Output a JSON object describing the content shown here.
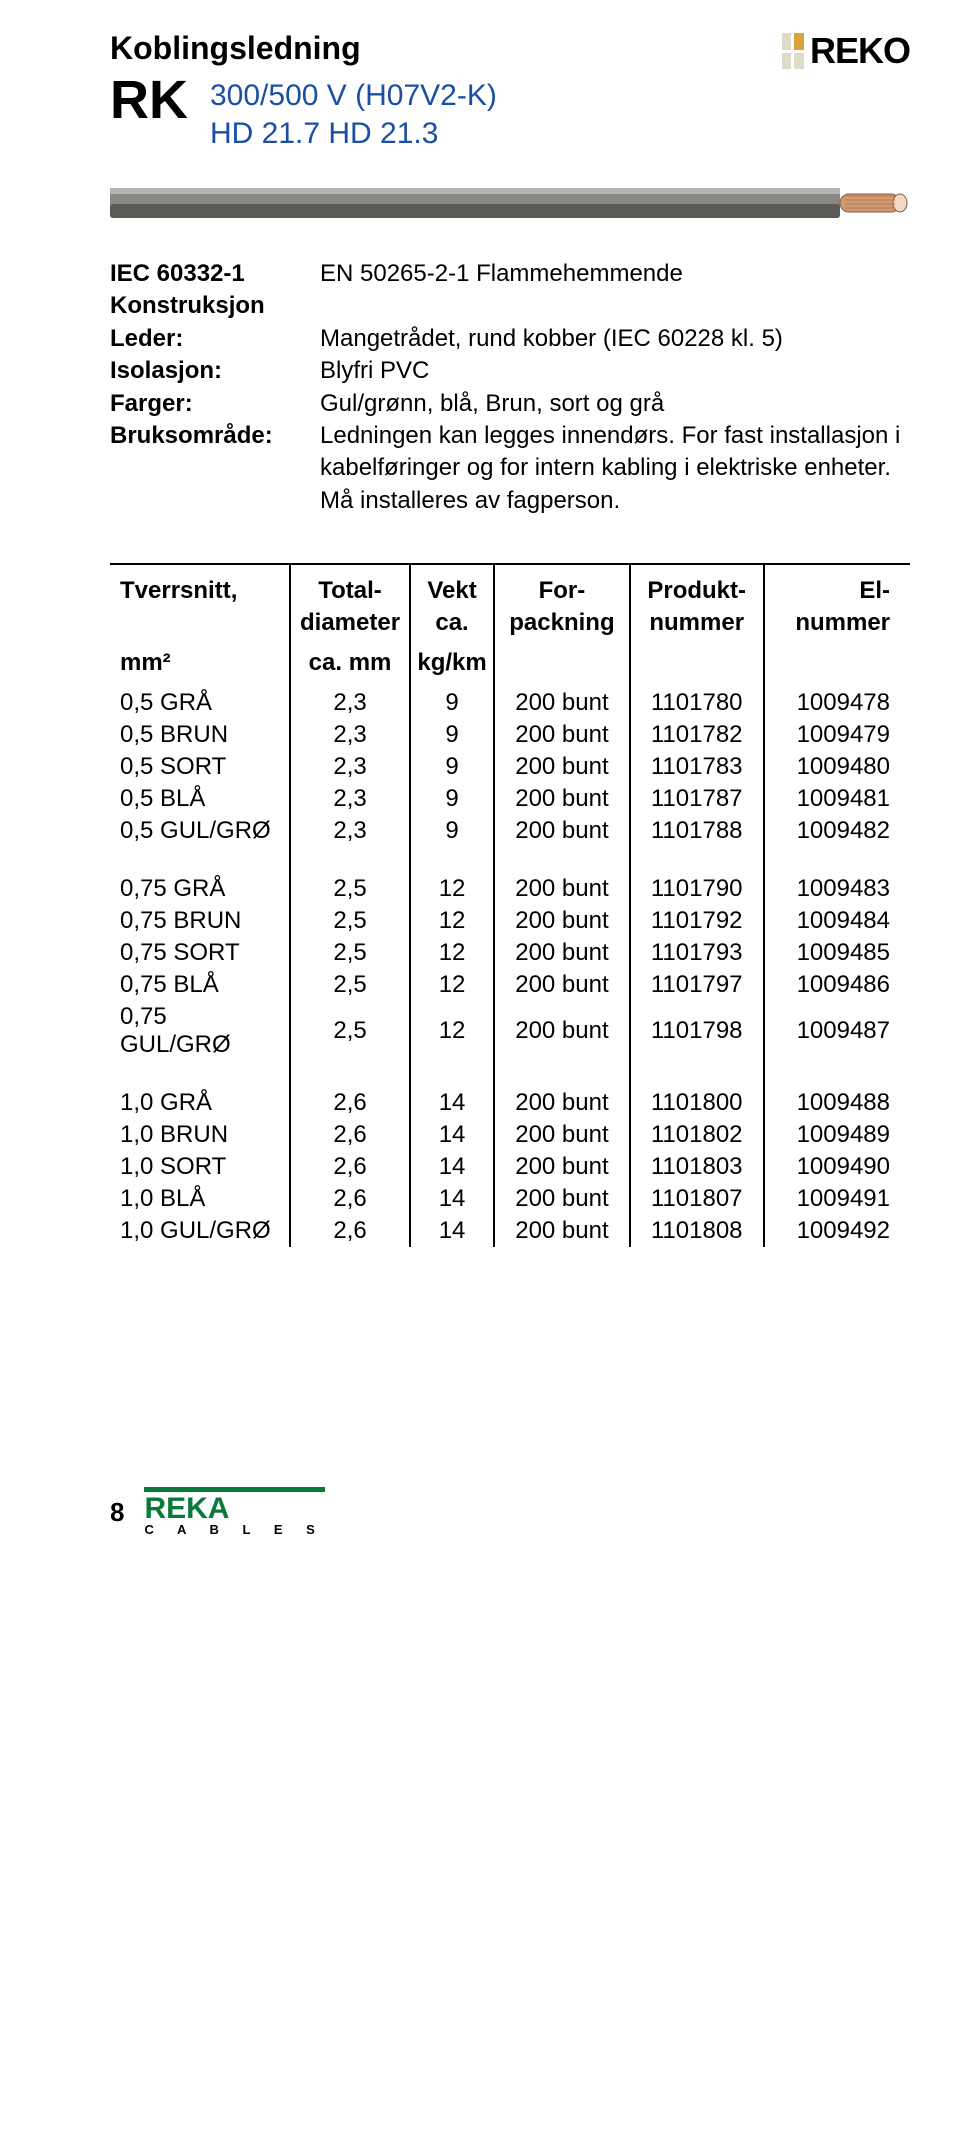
{
  "header": {
    "title": "Koblingsledning",
    "code": "RK",
    "subtitle_l1": "300/500 V (H07V2-K)",
    "subtitle_l2": "HD 21.7   HD 21.3",
    "logo_text": "REKO",
    "logo_colors": {
      "plain": "#dedbc9",
      "accent": "#d8a43b"
    }
  },
  "cable_colors": {
    "sheath": "#8a8887",
    "shadow": "#5a5956",
    "copper": "#d29a73",
    "core": "#f1d8c5"
  },
  "specs": [
    {
      "label": "IEC 60332-1",
      "value": "EN 50265-2-1     Flammehemmende"
    },
    {
      "label": "Konstruksjon",
      "value": ""
    },
    {
      "label": "Leder:",
      "value": "Mangetrådet, rund kobber (IEC 60228 kl. 5)"
    },
    {
      "label": "Isolasjon:",
      "value": "Blyfri PVC"
    },
    {
      "label": "Farger:",
      "value": "Gul/grønn, blå, Brun, sort og grå"
    },
    {
      "label": "Bruksområde:",
      "value": "Ledningen kan legges innendørs. For fast installasjon i kabelføringer og for intern kabling i elektriske enheter. Må installeres av fagperson."
    }
  ],
  "table": {
    "headers": {
      "c0a": "Tverrsnitt,",
      "c0b": "",
      "c1a": "Total-",
      "c1b": "diameter",
      "c2a": "Vekt",
      "c2b": "ca.",
      "c3a": "For-",
      "c3b": "packning",
      "c4a": "Produkt-",
      "c4b": "nummer",
      "c5a": "El-",
      "c5b": "nummer"
    },
    "units": {
      "c0": "mm²",
      "c1": "ca. mm",
      "c2": "kg/km"
    },
    "groups": [
      [
        [
          "0,5 GRÅ",
          "2,3",
          "9",
          "200 bunt",
          "1101780",
          "1009478"
        ],
        [
          "0,5 BRUN",
          "2,3",
          "9",
          "200 bunt",
          "1101782",
          "1009479"
        ],
        [
          "0,5 SORT",
          "2,3",
          "9",
          "200 bunt",
          "1101783",
          "1009480"
        ],
        [
          "0,5 BLÅ",
          "2,3",
          "9",
          "200 bunt",
          "1101787",
          "1009481"
        ],
        [
          "0,5 GUL/GRØ",
          "2,3",
          "9",
          "200 bunt",
          "1101788",
          "1009482"
        ]
      ],
      [
        [
          "0,75 GRÅ",
          "2,5",
          "12",
          "200 bunt",
          "1101790",
          "1009483"
        ],
        [
          "0,75 BRUN",
          "2,5",
          "12",
          "200 bunt",
          "1101792",
          "1009484"
        ],
        [
          "0,75 SORT",
          "2,5",
          "12",
          "200 bunt",
          "1101793",
          "1009485"
        ],
        [
          "0,75 BLÅ",
          "2,5",
          "12",
          "200 bunt",
          "1101797",
          "1009486"
        ],
        [
          "0,75 GUL/GRØ",
          "2,5",
          "12",
          "200 bunt",
          "1101798",
          "1009487"
        ]
      ],
      [
        [
          "1,0 GRÅ",
          "2,6",
          "14",
          "200 bunt",
          "1101800",
          "1009488"
        ],
        [
          "1,0 BRUN",
          "2,6",
          "14",
          "200 bunt",
          "1101802",
          "1009489"
        ],
        [
          "1,0 SORT",
          "2,6",
          "14",
          "200 bunt",
          "1101803",
          "1009490"
        ],
        [
          "1,0 BLÅ",
          "2,6",
          "14",
          "200 bunt",
          "1101807",
          "1009491"
        ],
        [
          "1,0 GUL/GRØ",
          "2,6",
          "14",
          "200 bunt",
          "1101808",
          "1009492"
        ]
      ]
    ]
  },
  "footer": {
    "page": "8",
    "logo_text": "REKA",
    "logo_sub": "C  A  B  L  E  S",
    "logo_color": "#0a7a3a"
  }
}
